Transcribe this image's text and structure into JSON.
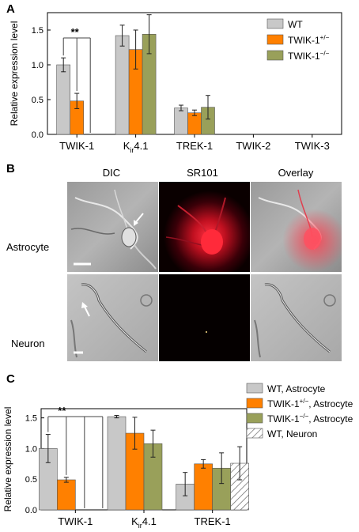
{
  "panel_letters": {
    "a": "A",
    "b": "B",
    "c": "C"
  },
  "colors": {
    "wt": "#c8c8c8",
    "twik1_het": "#ff8000",
    "twik1_ko": "#99a05a",
    "wt_neuron_hatch": "#666666"
  },
  "panel_b": {
    "column_headers": [
      "DIC",
      "SR101",
      "Overlay"
    ],
    "row_labels": [
      "Astrocyte",
      "Neuron"
    ]
  },
  "chart_data": [
    {
      "type": "bar",
      "panel": "A",
      "ylabel": "Relative expression level",
      "xlabel": "",
      "ylim": [
        0,
        1.75
      ],
      "yticks": [
        "0.0",
        "0.5",
        "1.0",
        "1.5"
      ],
      "categories": [
        "TWIK-1",
        "Kir4.1",
        "TREK-1",
        "TWIK-2",
        "TWIK-3"
      ],
      "category_labels": [
        {
          "main": "TWIK-1",
          "sub": "",
          "rest": ""
        },
        {
          "main": "K",
          "sub": "ir",
          "rest": "4.1"
        },
        {
          "main": "TREK-1",
          "sub": "",
          "rest": ""
        },
        {
          "main": "TWIK-2",
          "sub": "",
          "rest": ""
        },
        {
          "main": "TWIK-3",
          "sub": "",
          "rest": ""
        }
      ],
      "series": [
        {
          "name": "WT",
          "legend_base": "WT",
          "legend_sup": "",
          "color_key": "wt",
          "values": [
            1.0,
            1.42,
            0.38,
            0,
            0
          ],
          "errors": [
            0.1,
            0.15,
            0.04,
            0,
            0
          ]
        },
        {
          "name": "TWIK-1+/-",
          "legend_base": "TWIK-1",
          "legend_sup": "+/−",
          "color_key": "twik1_het",
          "values": [
            0.48,
            1.22,
            0.31,
            0,
            0
          ],
          "errors": [
            0.11,
            0.28,
            0.04,
            0,
            0
          ]
        },
        {
          "name": "TWIK-1-/-",
          "legend_base": "TWIK-1",
          "legend_sup": "−/−",
          "color_key": "twik1_ko",
          "values": [
            0,
            1.44,
            0.39,
            0,
            0
          ],
          "errors": [
            0,
            0.28,
            0.17,
            0,
            0
          ]
        }
      ],
      "significance": "**",
      "legend_position": "top-right"
    },
    {
      "type": "bar",
      "panel": "C",
      "ylabel": "Relative expression level",
      "xlabel": "",
      "ylim": [
        0,
        1.65
      ],
      "yticks": [
        "0.0",
        "0.5",
        "1.0",
        "1.5"
      ],
      "categories": [
        "TWIK-1",
        "Kir4.1",
        "TREK-1"
      ],
      "category_labels": [
        {
          "main": "TWIK-1",
          "sub": "",
          "rest": ""
        },
        {
          "main": "K",
          "sub": "ir",
          "rest": "4.1"
        },
        {
          "main": "TREK-1",
          "sub": "",
          "rest": ""
        }
      ],
      "series": [
        {
          "name": "WT, Astrocyte",
          "legend_base": "WT, Astrocyte",
          "legend_sup": "",
          "legend_post": "",
          "color_key": "wt",
          "values": [
            1.0,
            1.52,
            0.42
          ],
          "errors": [
            0.23,
            0.02,
            0.19
          ]
        },
        {
          "name": "TWIK-1+/-, Astrocyte",
          "legend_base": "TWIK-1",
          "legend_sup": "+/−",
          "legend_post": ", Astrocyte",
          "color_key": "twik1_het",
          "values": [
            0.49,
            1.25,
            0.75
          ],
          "errors": [
            0.04,
            0.26,
            0.07
          ]
        },
        {
          "name": "TWIK-1-/-, Astrocyte",
          "legend_base": "TWIK-1",
          "legend_sup": "−/−",
          "legend_post": ", Astrocyte",
          "color_key": "twik1_ko",
          "values": [
            0,
            1.08,
            0.68
          ],
          "errors": [
            0,
            0.22,
            0.25
          ]
        },
        {
          "name": "WT, Neuron",
          "legend_base": "WT, Neuron",
          "legend_sup": "",
          "legend_post": "",
          "color_key": "wt_neuron_hatch",
          "values": [
            0,
            0,
            0.76
          ],
          "errors": [
            0,
            0,
            0.27
          ]
        }
      ],
      "significance": "**",
      "legend_position": "top-right"
    }
  ]
}
